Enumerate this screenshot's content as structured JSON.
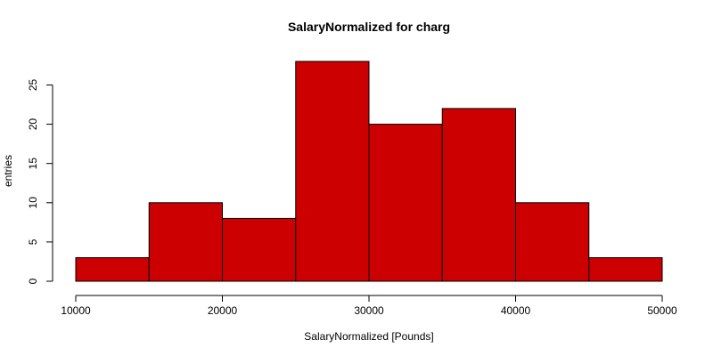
{
  "chart_data": {
    "type": "bar",
    "title": "SalaryNormalized for charg",
    "xlabel": "SalaryNormalized [Pounds]",
    "ylabel": "entries",
    "bin_edges": [
      10000,
      15000,
      20000,
      25000,
      30000,
      35000,
      40000,
      45000,
      50000
    ],
    "values": [
      3,
      10,
      8,
      28,
      20,
      22,
      10,
      3
    ],
    "xlim": [
      10000,
      50000
    ],
    "ylim": [
      0,
      28
    ],
    "x_ticks": [
      10000,
      20000,
      30000,
      40000,
      50000
    ],
    "y_ticks": [
      0,
      5,
      10,
      15,
      20,
      25
    ],
    "grid": false,
    "bar_color": "#cc0000"
  }
}
